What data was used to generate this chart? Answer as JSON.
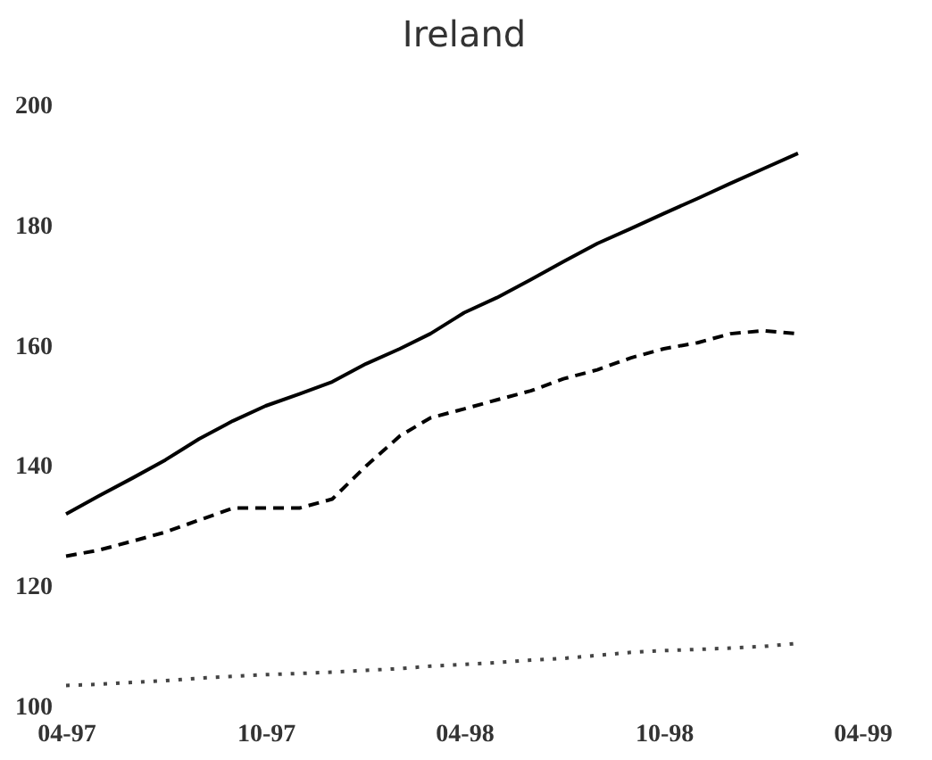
{
  "chart_data": {
    "type": "line",
    "title": "Ireland",
    "x": [
      "1997-04",
      "1997-05",
      "1997-06",
      "1997-07",
      "1997-08",
      "1997-09",
      "1997-10",
      "1997-11",
      "1997-12",
      "1998-01",
      "1998-02",
      "1998-03",
      "1998-04",
      "1998-05",
      "1998-06",
      "1998-07",
      "1998-08",
      "1998-09",
      "1998-10",
      "1998-11",
      "1998-12",
      "1999-01",
      "1999-02"
    ],
    "series": [
      {
        "color": "#000000",
        "line_style": "solid",
        "values": [
          132,
          135,
          138,
          141,
          144.5,
          147.5,
          150,
          152,
          154,
          157,
          159.5,
          162,
          165.5,
          168,
          171,
          174,
          177,
          179.5,
          182,
          184.5,
          187,
          189.5,
          192
        ]
      },
      {
        "color": "#000000",
        "line_style": "dashed",
        "values": [
          125,
          126,
          127.5,
          129,
          131,
          133,
          133,
          133,
          134.5,
          140,
          145,
          148,
          149.5,
          151,
          152.5,
          154.5,
          156,
          158,
          159.5,
          160.5,
          162,
          162.5,
          162
        ]
      },
      {
        "color": "#444444",
        "line_style": "dotted",
        "values": [
          103.5,
          103.7,
          104,
          104.3,
          104.7,
          105,
          105.3,
          105.5,
          105.7,
          106,
          106.3,
          106.7,
          107,
          107.3,
          107.7,
          108,
          108.5,
          109,
          109.3,
          109.5,
          109.7,
          110,
          110.5
        ]
      }
    ],
    "xlim": [
      "1997-04",
      "1999-04"
    ],
    "xticks": [
      {
        "value": "1997-04",
        "label": "04-97"
      },
      {
        "value": "1997-10",
        "label": "10-97"
      },
      {
        "value": "1998-04",
        "label": "04-98"
      },
      {
        "value": "1998-10",
        "label": "10-98"
      },
      {
        "value": "1999-04",
        "label": "04-99"
      }
    ],
    "ylim": [
      100,
      200
    ],
    "yticks": [
      100,
      120,
      140,
      160,
      180,
      200
    ],
    "grid": false,
    "marker": "none"
  }
}
